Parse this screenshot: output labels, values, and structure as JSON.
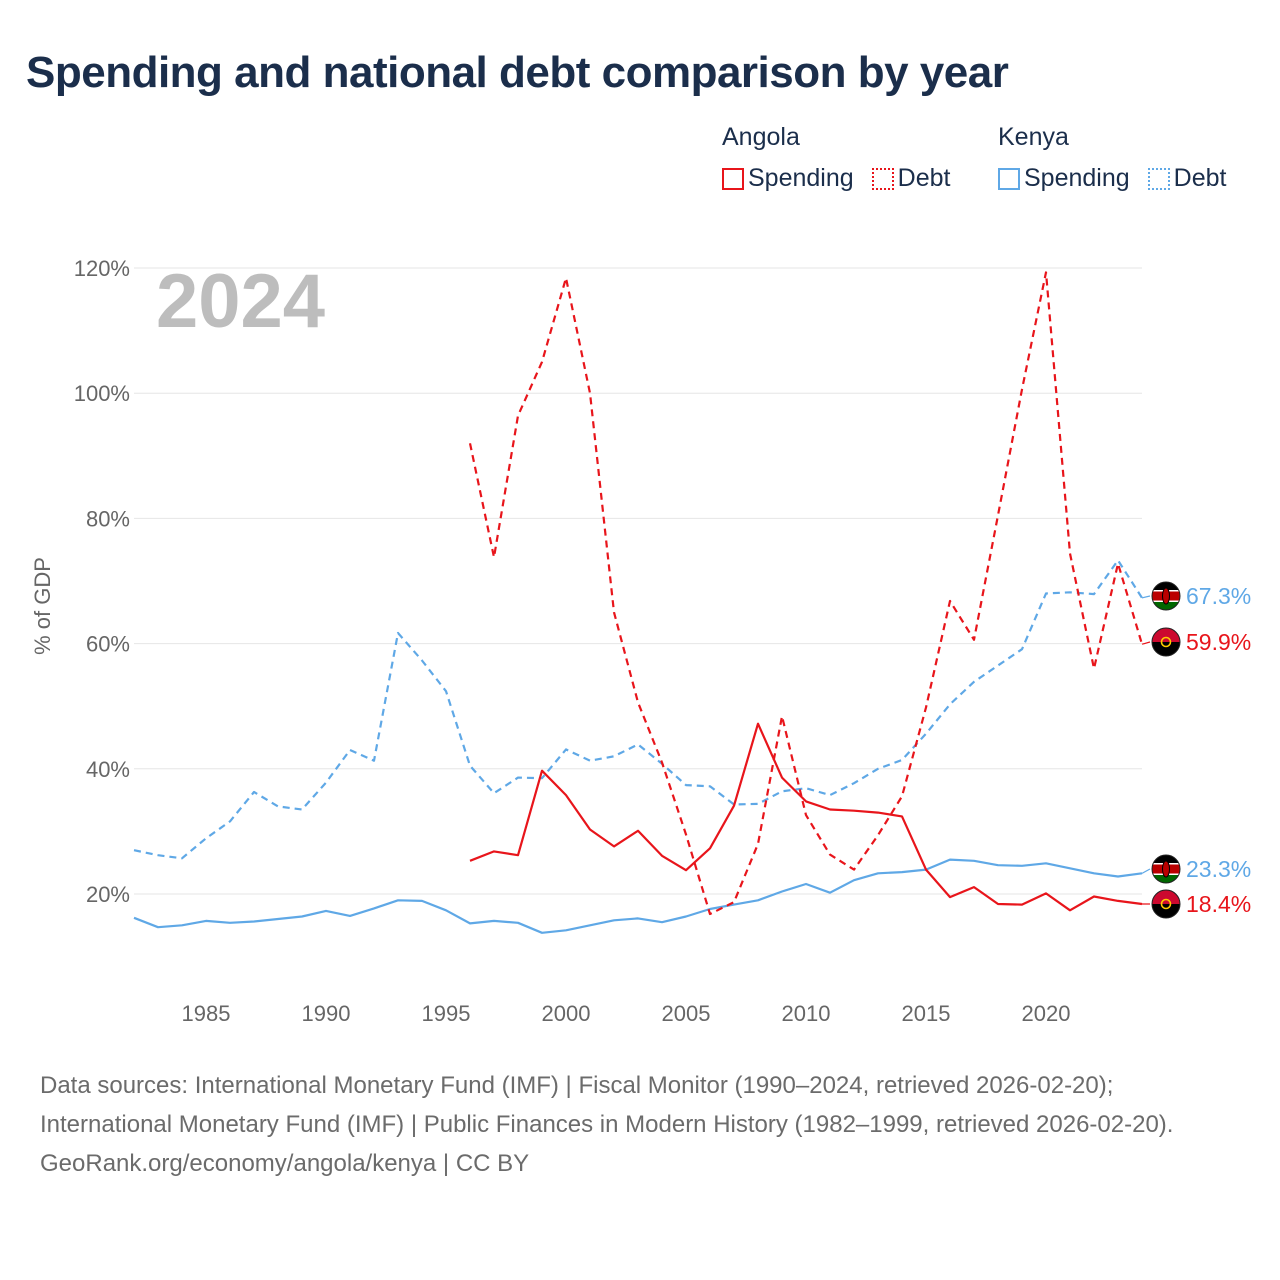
{
  "title": "Spending and national debt comparison by year",
  "year_label": "2024",
  "legend": {
    "angola": {
      "title": "Angola",
      "spending": "Spending",
      "debt": "Debt",
      "color": "#e8151b"
    },
    "kenya": {
      "title": "Kenya",
      "spending": "Spending",
      "debt": "Debt",
      "color": "#5fa8e6"
    }
  },
  "end_labels": {
    "kenya_debt": "67.3%",
    "angola_debt": "59.9%",
    "kenya_spending": "23.3%",
    "angola_spending": "18.4%"
  },
  "footer": {
    "sources": "Data sources: International Monetary Fund (IMF) | Fiscal Monitor (1990–2024, retrieved 2026-02-20); International Monetary Fund (IMF) | Public Finances in Modern History (1982–1999, retrieved 2026-02-20).",
    "credit": "GeoRank.org/economy/angola/kenya | CC BY"
  },
  "chart_data": {
    "type": "line",
    "title": "Spending and national debt comparison by year",
    "ylabel": "% of GDP",
    "xlabel": "",
    "xlim": [
      1982,
      2024
    ],
    "ylim": [
      8,
      122
    ],
    "yticks": [
      20,
      40,
      60,
      80,
      100,
      120
    ],
    "ytick_labels": [
      "20%",
      "40%",
      "60%",
      "80%",
      "100%",
      "120%"
    ],
    "xticks": [
      1985,
      1990,
      1995,
      2000,
      2005,
      2010,
      2015,
      2020
    ],
    "xtick_labels": [
      "1985",
      "1990",
      "1995",
      "2000",
      "2005",
      "2010",
      "2015",
      "2020"
    ],
    "grid": true,
    "series": [
      {
        "name": "Kenya Debt",
        "country": "Kenya",
        "metric": "Debt",
        "color": "#5fa8e6",
        "dashed": true,
        "x": [
          1982,
          1983,
          1984,
          1985,
          1986,
          1987,
          1988,
          1989,
          1990,
          1991,
          1992,
          1993,
          1994,
          1995,
          1996,
          1997,
          1998,
          1999,
          2000,
          2001,
          2002,
          2003,
          2004,
          2005,
          2006,
          2007,
          2008,
          2009,
          2010,
          2011,
          2012,
          2013,
          2014,
          2015,
          2016,
          2017,
          2018,
          2019,
          2020,
          2021,
          2022,
          2023,
          2024
        ],
        "y": [
          27.0,
          26.2,
          25.7,
          28.9,
          31.6,
          36.3,
          34.0,
          33.5,
          37.8,
          43.0,
          41.3,
          61.7,
          57.3,
          52.4,
          40.5,
          36.1,
          38.6,
          38.5,
          43.1,
          41.3,
          42.0,
          43.9,
          40.8,
          37.4,
          37.2,
          34.3,
          34.4,
          36.4,
          36.9,
          35.8,
          37.7,
          40.0,
          41.4,
          45.6,
          50.3,
          53.9,
          56.5,
          59.1,
          68.0,
          68.2,
          67.9,
          73.3,
          67.3
        ]
      },
      {
        "name": "Kenya Spending",
        "country": "Kenya",
        "metric": "Spending",
        "color": "#5fa8e6",
        "dashed": false,
        "x": [
          1982,
          1983,
          1984,
          1985,
          1986,
          1987,
          1988,
          1989,
          1990,
          1991,
          1992,
          1993,
          1994,
          1995,
          1996,
          1997,
          1998,
          1999,
          2000,
          2001,
          2002,
          2003,
          2004,
          2005,
          2006,
          2007,
          2008,
          2009,
          2010,
          2011,
          2012,
          2013,
          2014,
          2015,
          2016,
          2017,
          2018,
          2019,
          2020,
          2021,
          2022,
          2023,
          2024
        ],
        "y": [
          16.2,
          14.7,
          15.0,
          15.7,
          15.4,
          15.6,
          16.0,
          16.4,
          17.3,
          16.5,
          17.7,
          19.0,
          18.9,
          17.4,
          15.3,
          15.7,
          15.4,
          13.8,
          14.2,
          15.0,
          15.8,
          16.1,
          15.5,
          16.4,
          17.6,
          18.3,
          19.0,
          20.4,
          21.6,
          20.2,
          22.2,
          23.3,
          23.5,
          23.9,
          25.5,
          25.3,
          24.6,
          24.5,
          24.9,
          24.1,
          23.3,
          22.8,
          23.3
        ]
      },
      {
        "name": "Angola Debt",
        "country": "Angola",
        "metric": "Debt",
        "color": "#e8151b",
        "dashed": true,
        "x": [
          1996,
          1997,
          1998,
          1999,
          2000,
          2001,
          2002,
          2003,
          2004,
          2005,
          2006,
          2007,
          2008,
          2009,
          2010,
          2011,
          2012,
          2013,
          2014,
          2015,
          2016,
          2017,
          2018,
          2019,
          2020,
          2021,
          2022,
          2023,
          2024
        ],
        "y": [
          92.0,
          73.8,
          96.4,
          105.0,
          118.4,
          100.0,
          65.0,
          50.6,
          41.0,
          29.5,
          16.8,
          18.7,
          28.0,
          48.4,
          32.6,
          26.3,
          23.9,
          29.4,
          35.6,
          49.8,
          66.8,
          60.6,
          80.5,
          100.6,
          119.3,
          74.4,
          56.0,
          72.8,
          59.9
        ]
      },
      {
        "name": "Angola Spending",
        "country": "Angola",
        "metric": "Spending",
        "color": "#e8151b",
        "dashed": false,
        "x": [
          1996,
          1997,
          1998,
          1999,
          2000,
          2001,
          2002,
          2003,
          2004,
          2005,
          2006,
          2007,
          2008,
          2009,
          2010,
          2011,
          2012,
          2013,
          2014,
          2015,
          2016,
          2017,
          2018,
          2019,
          2020,
          2021,
          2022,
          2023,
          2024
        ],
        "y": [
          25.3,
          26.8,
          26.2,
          39.7,
          35.8,
          30.3,
          27.6,
          30.1,
          26.1,
          23.8,
          27.3,
          34.1,
          47.2,
          38.6,
          34.8,
          33.5,
          33.3,
          33.0,
          32.4,
          23.9,
          19.5,
          21.1,
          18.4,
          18.3,
          20.1,
          17.4,
          19.6,
          18.9,
          18.4
        ]
      }
    ]
  }
}
